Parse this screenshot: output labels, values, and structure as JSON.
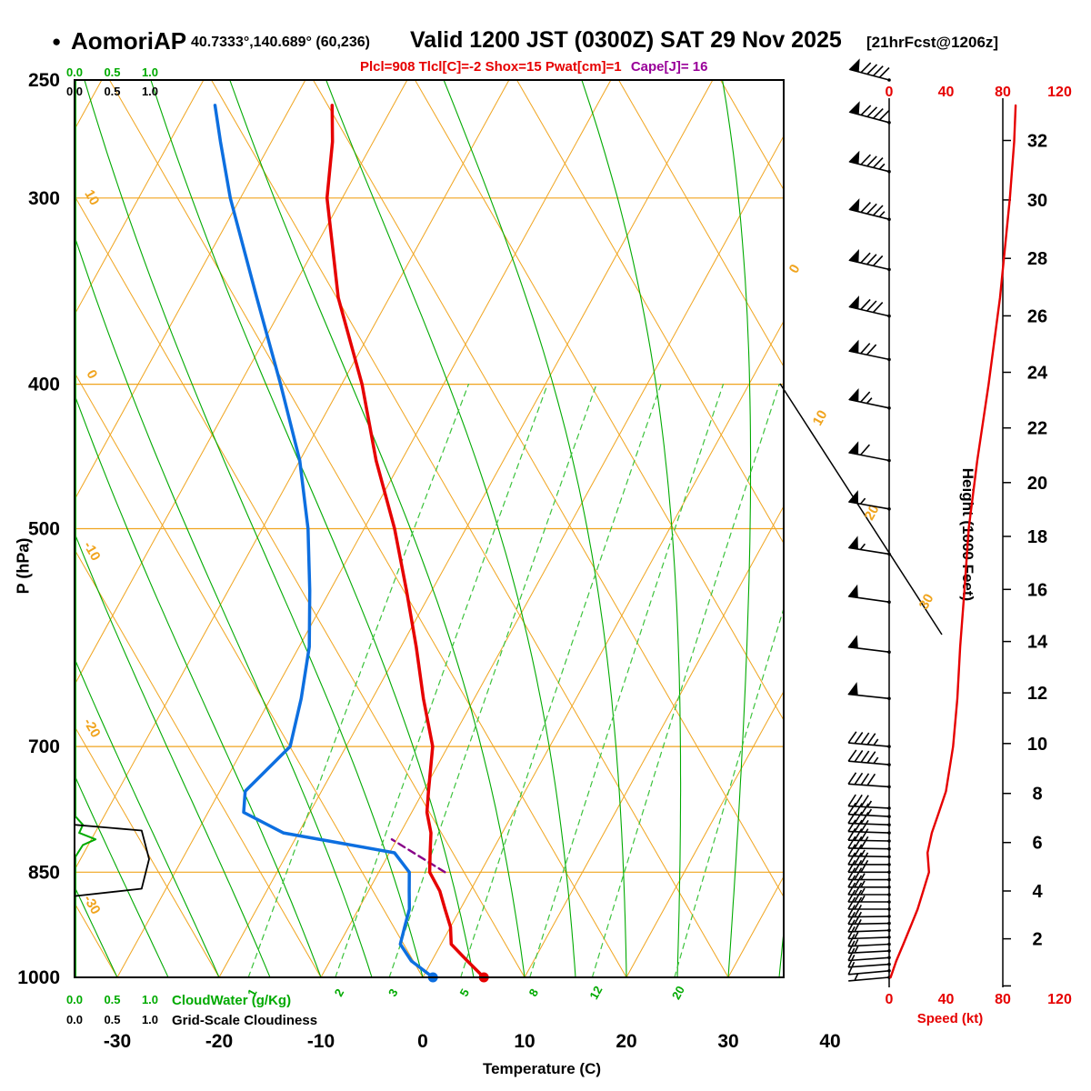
{
  "header": {
    "bullet": "●",
    "station": "AomoriAP",
    "coords": "40.7333°,140.689° (60,236)",
    "valid": "Valid 1200 JST (0300Z) SAT 29 Nov 2025",
    "fcst": "[21hrFcst@1206z]",
    "params": {
      "red": "Plcl=908 Tlcl[C]=-2 Shox=15 Pwat[cm]=1",
      "purple": "Cape[J]= 16"
    }
  },
  "axes": {
    "pressure": {
      "label": "P (hPa)",
      "ticks": [
        250,
        300,
        400,
        500,
        700,
        850,
        1000
      ],
      "min": 250,
      "max": 1000
    },
    "temperature": {
      "label": "Temperature (C)",
      "ticks": [
        -30,
        -20,
        -10,
        0,
        10,
        20,
        30,
        40
      ]
    },
    "height": {
      "label": "Height (1000 Feet)",
      "ticks": [
        2,
        4,
        6,
        8,
        10,
        12,
        14,
        16,
        18,
        20,
        22,
        24,
        26,
        28,
        30,
        32
      ]
    },
    "speed": {
      "label": "Speed (kt)",
      "ticks": [
        0,
        40,
        80,
        120
      ]
    },
    "cloudwater": {
      "label": "CloudWater (g/Kg)",
      "ticks": [
        "0.0",
        "0.5",
        "1.0"
      ]
    },
    "cloudiness": {
      "label": "Grid-Scale Cloudiness",
      "ticks": [
        "0.0",
        "0.5",
        "1.0"
      ]
    }
  },
  "guides": {
    "dry_adiabat_labels": [
      10,
      0,
      -10,
      -20,
      -30
    ],
    "isotherm_labels": [
      0,
      10,
      20,
      30
    ],
    "mixing_ratio_values": [
      1,
      2,
      3,
      5,
      8,
      12,
      20
    ],
    "isotherm_range": [
      -90,
      40
    ],
    "isotherm_step": 10,
    "dry_adiabat_range": [
      -30,
      90
    ],
    "dry_adiabat_step": 10,
    "moist_adiabat_range": [
      -30,
      40
    ],
    "moist_adiabat_step": 5
  },
  "chart_data": {
    "type": "line",
    "subtype": "skewt_logp_sounding",
    "title": "AomoriAP sounding, valid 1200 JST SAT 29 Nov 2025",
    "pressure_hPa": [
      1000,
      975,
      950,
      925,
      900,
      875,
      850,
      825,
      800,
      775,
      750,
      700,
      650,
      600,
      550,
      500,
      450,
      400,
      350,
      300,
      275,
      260
    ],
    "temperature_C": [
      6,
      3.5,
      1,
      0,
      -1.5,
      -3,
      -5,
      -6,
      -7,
      -8.5,
      -9.5,
      -11.5,
      -15,
      -18.5,
      -22.5,
      -27,
      -32.5,
      -38,
      -45,
      -51.5,
      -54,
      -56
    ],
    "dewpoint_C": [
      1,
      -2,
      -4,
      -4.5,
      -5,
      -6,
      -7,
      -9.5,
      -21.5,
      -26.5,
      -27.5,
      -25.5,
      -27,
      -29,
      -32,
      -35.5,
      -40,
      -46,
      -53,
      -61,
      -65,
      -67.5
    ],
    "parcel_purple": {
      "pressure_hPa": [
        850,
        808
      ],
      "temperature_C": [
        -3.5,
        -10.5
      ]
    },
    "surface_dots": {
      "pressure_hPa": 1000,
      "temperature_C": 6,
      "dewpoint_C": 1
    },
    "speed_profile_kt": {
      "pressure_hPa": [
        1000,
        975,
        950,
        925,
        900,
        875,
        850,
        825,
        800,
        775,
        750,
        700,
        650,
        600,
        550,
        500,
        450,
        400,
        350,
        300,
        275,
        260
      ],
      "speed_kt": [
        1,
        5,
        10,
        15,
        20,
        24,
        28,
        27,
        30,
        35,
        40,
        45,
        48,
        50,
        53,
        56,
        62,
        70,
        78,
        85,
        88,
        89
      ]
    },
    "wind_barbs": [
      [
        1000,
        5,
        265
      ],
      [
        990,
        8,
        265
      ],
      [
        980,
        10,
        266
      ],
      [
        970,
        12,
        266
      ],
      [
        960,
        14,
        267
      ],
      [
        950,
        15,
        267
      ],
      [
        940,
        17,
        268
      ],
      [
        930,
        18,
        268
      ],
      [
        920,
        20,
        269
      ],
      [
        910,
        21,
        269
      ],
      [
        900,
        22,
        270
      ],
      [
        890,
        23,
        270
      ],
      [
        880,
        24,
        270
      ],
      [
        870,
        25,
        270
      ],
      [
        860,
        26,
        270
      ],
      [
        850,
        28,
        270
      ],
      [
        840,
        28,
        270
      ],
      [
        830,
        27,
        271
      ],
      [
        820,
        28,
        271
      ],
      [
        810,
        29,
        271
      ],
      [
        800,
        30,
        272
      ],
      [
        790,
        32,
        272
      ],
      [
        780,
        33,
        273
      ],
      [
        770,
        34,
        273
      ],
      [
        745,
        39,
        274
      ],
      [
        720,
        43,
        275
      ],
      [
        700,
        45,
        275
      ],
      [
        650,
        48,
        276
      ],
      [
        605,
        50,
        277
      ],
      [
        560,
        52,
        278
      ],
      [
        520,
        55,
        279
      ],
      [
        485,
        57,
        280
      ],
      [
        450,
        62,
        281
      ],
      [
        415,
        67,
        282
      ],
      [
        385,
        72,
        282
      ],
      [
        360,
        78,
        283
      ],
      [
        335,
        81,
        283
      ],
      [
        310,
        84,
        284
      ],
      [
        288,
        87,
        284
      ],
      [
        267,
        88,
        285
      ],
      [
        250,
        90,
        285
      ]
    ],
    "cloud_water_gkg": {
      "pressure_hPa": [
        1000,
        830,
        815,
        808,
        800,
        790,
        780,
        250
      ],
      "value": [
        0,
        0,
        0.1,
        0.27,
        0.05,
        0.1,
        0,
        0
      ]
    },
    "cloudiness": {
      "pressure_hPa": [
        882,
        872,
        833,
        797,
        790
      ],
      "value": [
        0,
        0.9,
        1.0,
        0.9,
        0
      ]
    }
  },
  "colors": {
    "orange": "#f0a41e",
    "green": "#00aa00",
    "green_dashed": "#3cc23c",
    "red": "#e60000",
    "blue": "#0d6fe0",
    "purple": "#880088",
    "param_red": "#e60000",
    "param_purple": "#990099",
    "black": "#000000"
  }
}
